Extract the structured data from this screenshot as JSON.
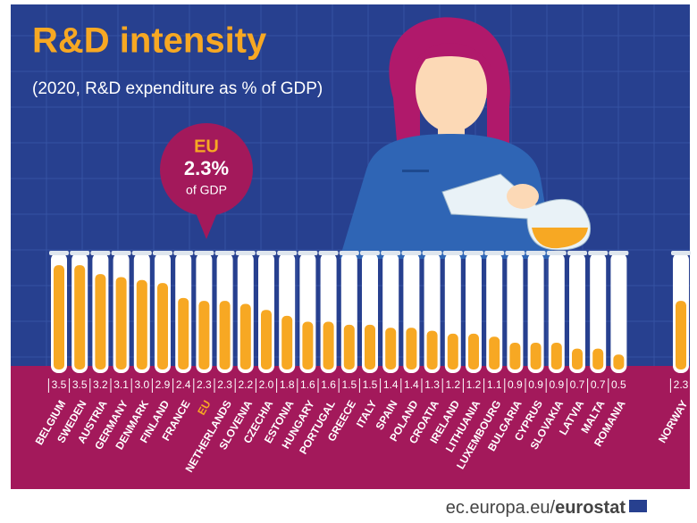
{
  "chart_data": {
    "type": "bar",
    "title": "R&D intensity",
    "subtitle": "(2020, R&D expenditure as % of GDP)",
    "callout": {
      "label": "EU",
      "value_label": "2.3%",
      "unit": "of GDP"
    },
    "categories": [
      "BELGIUM",
      "SWEDEN",
      "AUSTRIA",
      "GERMANY",
      "DENMARK",
      "FINLAND",
      "FRANCE",
      "EU",
      "NETHERLANDS",
      "SLOVENIA",
      "CZECHIA",
      "ESTONIA",
      "HUNGARY",
      "PORTUGAL",
      "GREECE",
      "ITALY",
      "SPAIN",
      "POLAND",
      "CROATIA",
      "IRELAND",
      "LITHUANIA",
      "LUXEMBOURG",
      "BULGARIA",
      "CYPRUS",
      "SLOVAKIA",
      "LATVIA",
      "MALTA",
      "ROMANIA",
      "NORWAY"
    ],
    "values": [
      3.5,
      3.5,
      3.2,
      3.1,
      3.0,
      2.9,
      2.4,
      2.3,
      2.3,
      2.2,
      2.0,
      1.8,
      1.6,
      1.6,
      1.5,
      1.5,
      1.4,
      1.4,
      1.3,
      1.2,
      1.2,
      1.1,
      0.9,
      0.9,
      0.9,
      0.7,
      0.7,
      0.5,
      2.3
    ],
    "value_labels": [
      "3.5",
      "3.5",
      "3.2",
      "3.1",
      "3.0",
      "2.9",
      "2.4",
      "2.3",
      "2.3",
      "2.2",
      "2.0",
      "1.8",
      "1.6",
      "1.6",
      "1.5",
      "1.5",
      "1.4",
      "1.4",
      "1.3",
      "1.2",
      "1.2",
      "1.1",
      "0.9",
      "0.9",
      "0.9",
      "0.7",
      "0.7",
      "0.5",
      "2.3"
    ],
    "color": "#f7a823",
    "highlight": "EU",
    "source": {
      "site": "ec.europa.eu/",
      "brand": "eurostat"
    }
  }
}
